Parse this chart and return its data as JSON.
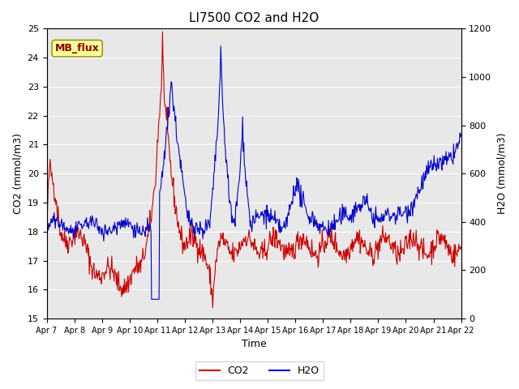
{
  "title": "LI7500 CO2 and H2O",
  "xlabel": "Time",
  "ylabel_left": "CO2 (mmol/m3)",
  "ylabel_right": "H2O (mmol/m3)",
  "legend_label": "MB_flux",
  "co2_ylim": [
    15.0,
    25.0
  ],
  "h2o_ylim": [
    0,
    1200
  ],
  "co2_yticks": [
    15.0,
    16.0,
    17.0,
    18.0,
    19.0,
    20.0,
    21.0,
    22.0,
    23.0,
    24.0,
    25.0
  ],
  "h2o_yticks": [
    0,
    200,
    400,
    600,
    800,
    1000,
    1200
  ],
  "xtick_labels": [
    "Apr 7",
    "Apr 8",
    "Apr 9",
    "Apr 10",
    "Apr 11",
    "Apr 12",
    "Apr 13",
    "Apr 14",
    "Apr 15",
    "Apr 16",
    "Apr 17",
    "Apr 18",
    "Apr 19",
    "Apr 20",
    "Apr 21",
    "Apr 22"
  ],
  "bg_color": "#e8e8e8",
  "co2_color": "#cc0000",
  "h2o_color": "#0000cc",
  "legend_box_color": "#ffff99",
  "legend_box_edge": "#888800",
  "legend_text_color": "#880000"
}
